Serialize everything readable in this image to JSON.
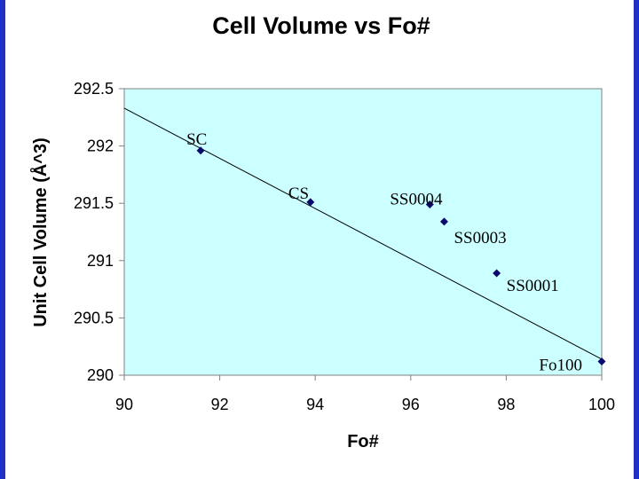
{
  "chart_data": {
    "type": "scatter",
    "title": "Cell Volume vs Fo#",
    "xlabel": "Fo#",
    "ylabel": "Unit Cell Volume (Å^3)",
    "xlim": [
      90,
      100
    ],
    "ylim": [
      290,
      292.5
    ],
    "xticks": [
      90,
      92,
      94,
      96,
      98,
      100
    ],
    "yticks": [
      290,
      290.5,
      291,
      291.5,
      292,
      292.5
    ],
    "grid": false,
    "points": [
      {
        "label": "SC",
        "x": 91.6,
        "y": 291.96
      },
      {
        "label": "CS",
        "x": 93.9,
        "y": 291.51
      },
      {
        "label": "SS0004",
        "x": 96.4,
        "y": 291.49
      },
      {
        "label": "SS0003",
        "x": 96.7,
        "y": 291.34
      },
      {
        "label": "SS0001",
        "x": 97.8,
        "y": 290.89
      },
      {
        "label": "Fo100",
        "x": 100.0,
        "y": 290.12
      }
    ],
    "trendline": {
      "x": [
        90,
        100
      ],
      "y": [
        292.33,
        290.14
      ]
    },
    "colors": {
      "plot_bg": "#ccffff",
      "marker": "#0a0a6e",
      "frame": "#1f2fc8"
    }
  }
}
